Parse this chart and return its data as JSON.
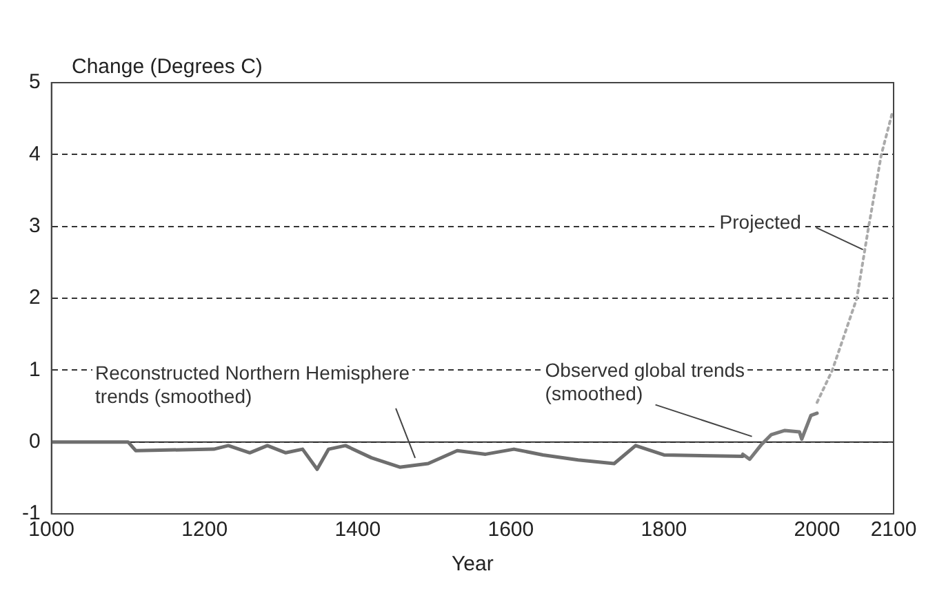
{
  "chart_data": {
    "type": "line",
    "ylabel": "Change (Degrees C)",
    "xlabel": "Year",
    "xlim": [
      1000,
      2100
    ],
    "xticks": [
      1000,
      1200,
      1400,
      1600,
      1800,
      2000,
      2100
    ],
    "ylim": [
      -1,
      5
    ],
    "yticks": [
      -1,
      0,
      1,
      2,
      3,
      4,
      5
    ],
    "grid": "y",
    "legend": false,
    "marker": "none",
    "ref_lines": [
      {
        "axis": "y",
        "value": 0,
        "color": "#333333",
        "line_style": "solid"
      }
    ],
    "series": [
      {
        "color": "#6e6e6e",
        "line_style": "solid",
        "x": [
          1000,
          1100,
          1110,
          1212,
          1231,
          1259,
          1282,
          1306,
          1328,
          1347,
          1362,
          1384,
          1418,
          1455,
          1492,
          1530,
          1567,
          1604,
          1642,
          1688,
          1735,
          1763,
          1800,
          1903
        ],
        "values": [
          0,
          0,
          -0.12,
          -0.1,
          -0.05,
          -0.15,
          -0.05,
          -0.15,
          -0.1,
          -0.38,
          -0.1,
          -0.05,
          -0.22,
          -0.35,
          -0.3,
          -0.12,
          -0.17,
          -0.1,
          -0.18,
          -0.25,
          -0.3,
          -0.05,
          -0.18,
          -0.2
        ]
      },
      {
        "color": "#7a7a7a",
        "line_style": "solid",
        "x": [
          1903,
          1912,
          1927,
          1940,
          1958,
          1977,
          1980,
          1992,
          2000
        ],
        "values": [
          -0.17,
          -0.24,
          -0.04,
          0.1,
          0.16,
          0.14,
          0.04,
          0.37,
          0.4
        ]
      },
      {
        "color": "#aaaaaa",
        "line_style": "dotted",
        "x": [
          2000,
          2020,
          2052,
          2067,
          2084,
          2098
        ],
        "values": [
          0.55,
          1,
          2,
          2.97,
          4,
          4.57
        ]
      }
    ],
    "annotations": [
      {
        "text": "Reconstructed Northern Hemisphere\ntrends (smoothed)",
        "x": 1475,
        "y": -0.3
      },
      {
        "text": "Observed global trends\n(smoothed)",
        "x": 1915,
        "y": 0
      },
      {
        "text": "Projected",
        "x": 2060,
        "y": 2.6
      }
    ]
  }
}
